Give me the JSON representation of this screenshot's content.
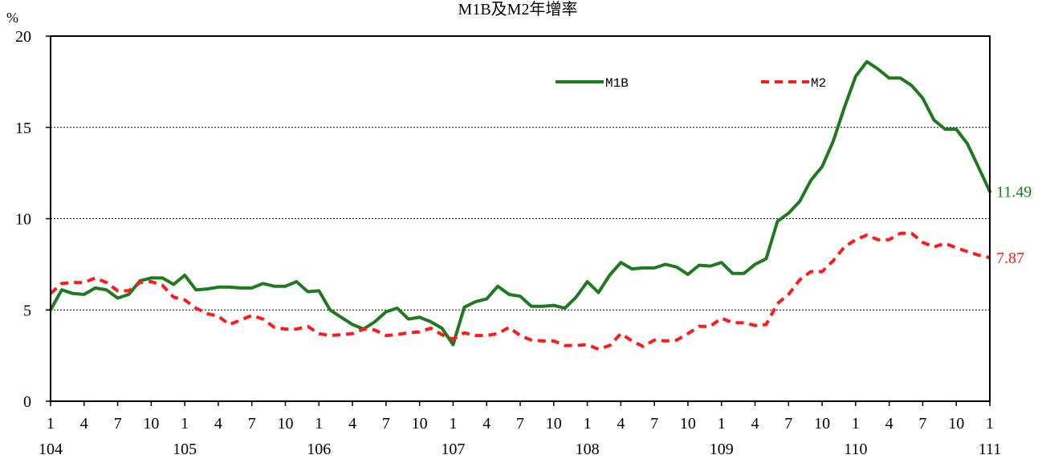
{
  "chart_data": {
    "type": "line",
    "title": "M1B及M2年增率",
    "y_unit": "%",
    "ylim": [
      0,
      20
    ],
    "y_ticks": [
      0,
      5,
      10,
      15,
      20
    ],
    "grid": "horizontal dotted at 5, 10, 15",
    "legend_position": "top-right",
    "month_ticks": [
      "1",
      "4",
      "7",
      "10",
      "1",
      "4",
      "7",
      "10",
      "1",
      "4",
      "7",
      "10",
      "1",
      "4",
      "7",
      "10",
      "1",
      "4",
      "7",
      "10",
      "1",
      "4",
      "7",
      "10",
      "1",
      "4",
      "7",
      "10",
      "1"
    ],
    "year_ticks": [
      "104",
      "105",
      "106",
      "107",
      "108",
      "109",
      "110",
      "111"
    ],
    "x_start": "104-01",
    "x_end": "111-01",
    "series": [
      {
        "name": "M1B",
        "color": "#1f7a1f",
        "style": "solid",
        "end_label": "11.49",
        "values": [
          5.0,
          6.1,
          5.9,
          5.85,
          6.2,
          6.1,
          5.65,
          5.85,
          6.6,
          6.75,
          6.75,
          6.4,
          6.9,
          6.1,
          6.15,
          6.25,
          6.25,
          6.2,
          6.2,
          6.45,
          6.3,
          6.3,
          6.55,
          6.0,
          6.05,
          5.0,
          4.6,
          4.2,
          3.95,
          4.35,
          4.9,
          5.1,
          4.5,
          4.6,
          4.35,
          4.0,
          3.1,
          5.15,
          5.45,
          5.6,
          6.3,
          5.85,
          5.75,
          5.2,
          5.2,
          5.25,
          5.1,
          5.7,
          6.55,
          5.95,
          6.9,
          7.6,
          7.25,
          7.3,
          7.3,
          7.5,
          7.35,
          6.95,
          7.45,
          7.4,
          7.6,
          7.0,
          7.0,
          7.5,
          7.8,
          9.85,
          10.3,
          10.95,
          12.1,
          12.85,
          14.25,
          16.1,
          17.8,
          18.6,
          18.2,
          17.7,
          17.7,
          17.3,
          16.6,
          15.4,
          14.9,
          14.9,
          14.1,
          12.8,
          11.49
        ]
      },
      {
        "name": "M2",
        "color": "#ff1a1a",
        "style": "dashed",
        "end_label": "7.87",
        "values": [
          5.9,
          6.45,
          6.5,
          6.5,
          6.75,
          6.5,
          6.05,
          6.05,
          6.5,
          6.55,
          6.35,
          5.7,
          5.55,
          5.1,
          4.8,
          4.65,
          4.2,
          4.45,
          4.7,
          4.5,
          4.05,
          3.95,
          3.95,
          4.1,
          3.7,
          3.6,
          3.65,
          3.7,
          3.95,
          3.9,
          3.6,
          3.65,
          3.75,
          3.8,
          4.0,
          3.65,
          3.4,
          3.75,
          3.6,
          3.6,
          3.7,
          4.05,
          3.6,
          3.35,
          3.3,
          3.3,
          3.05,
          3.05,
          3.1,
          2.85,
          3.05,
          3.7,
          3.3,
          3.0,
          3.35,
          3.3,
          3.35,
          3.7,
          4.1,
          4.1,
          4.55,
          4.3,
          4.3,
          4.15,
          4.2,
          5.35,
          5.85,
          6.65,
          7.1,
          7.1,
          7.7,
          8.45,
          8.85,
          9.1,
          8.85,
          8.85,
          9.2,
          9.2,
          8.7,
          8.45,
          8.65,
          8.4,
          8.2,
          8.0,
          7.87
        ]
      }
    ]
  }
}
